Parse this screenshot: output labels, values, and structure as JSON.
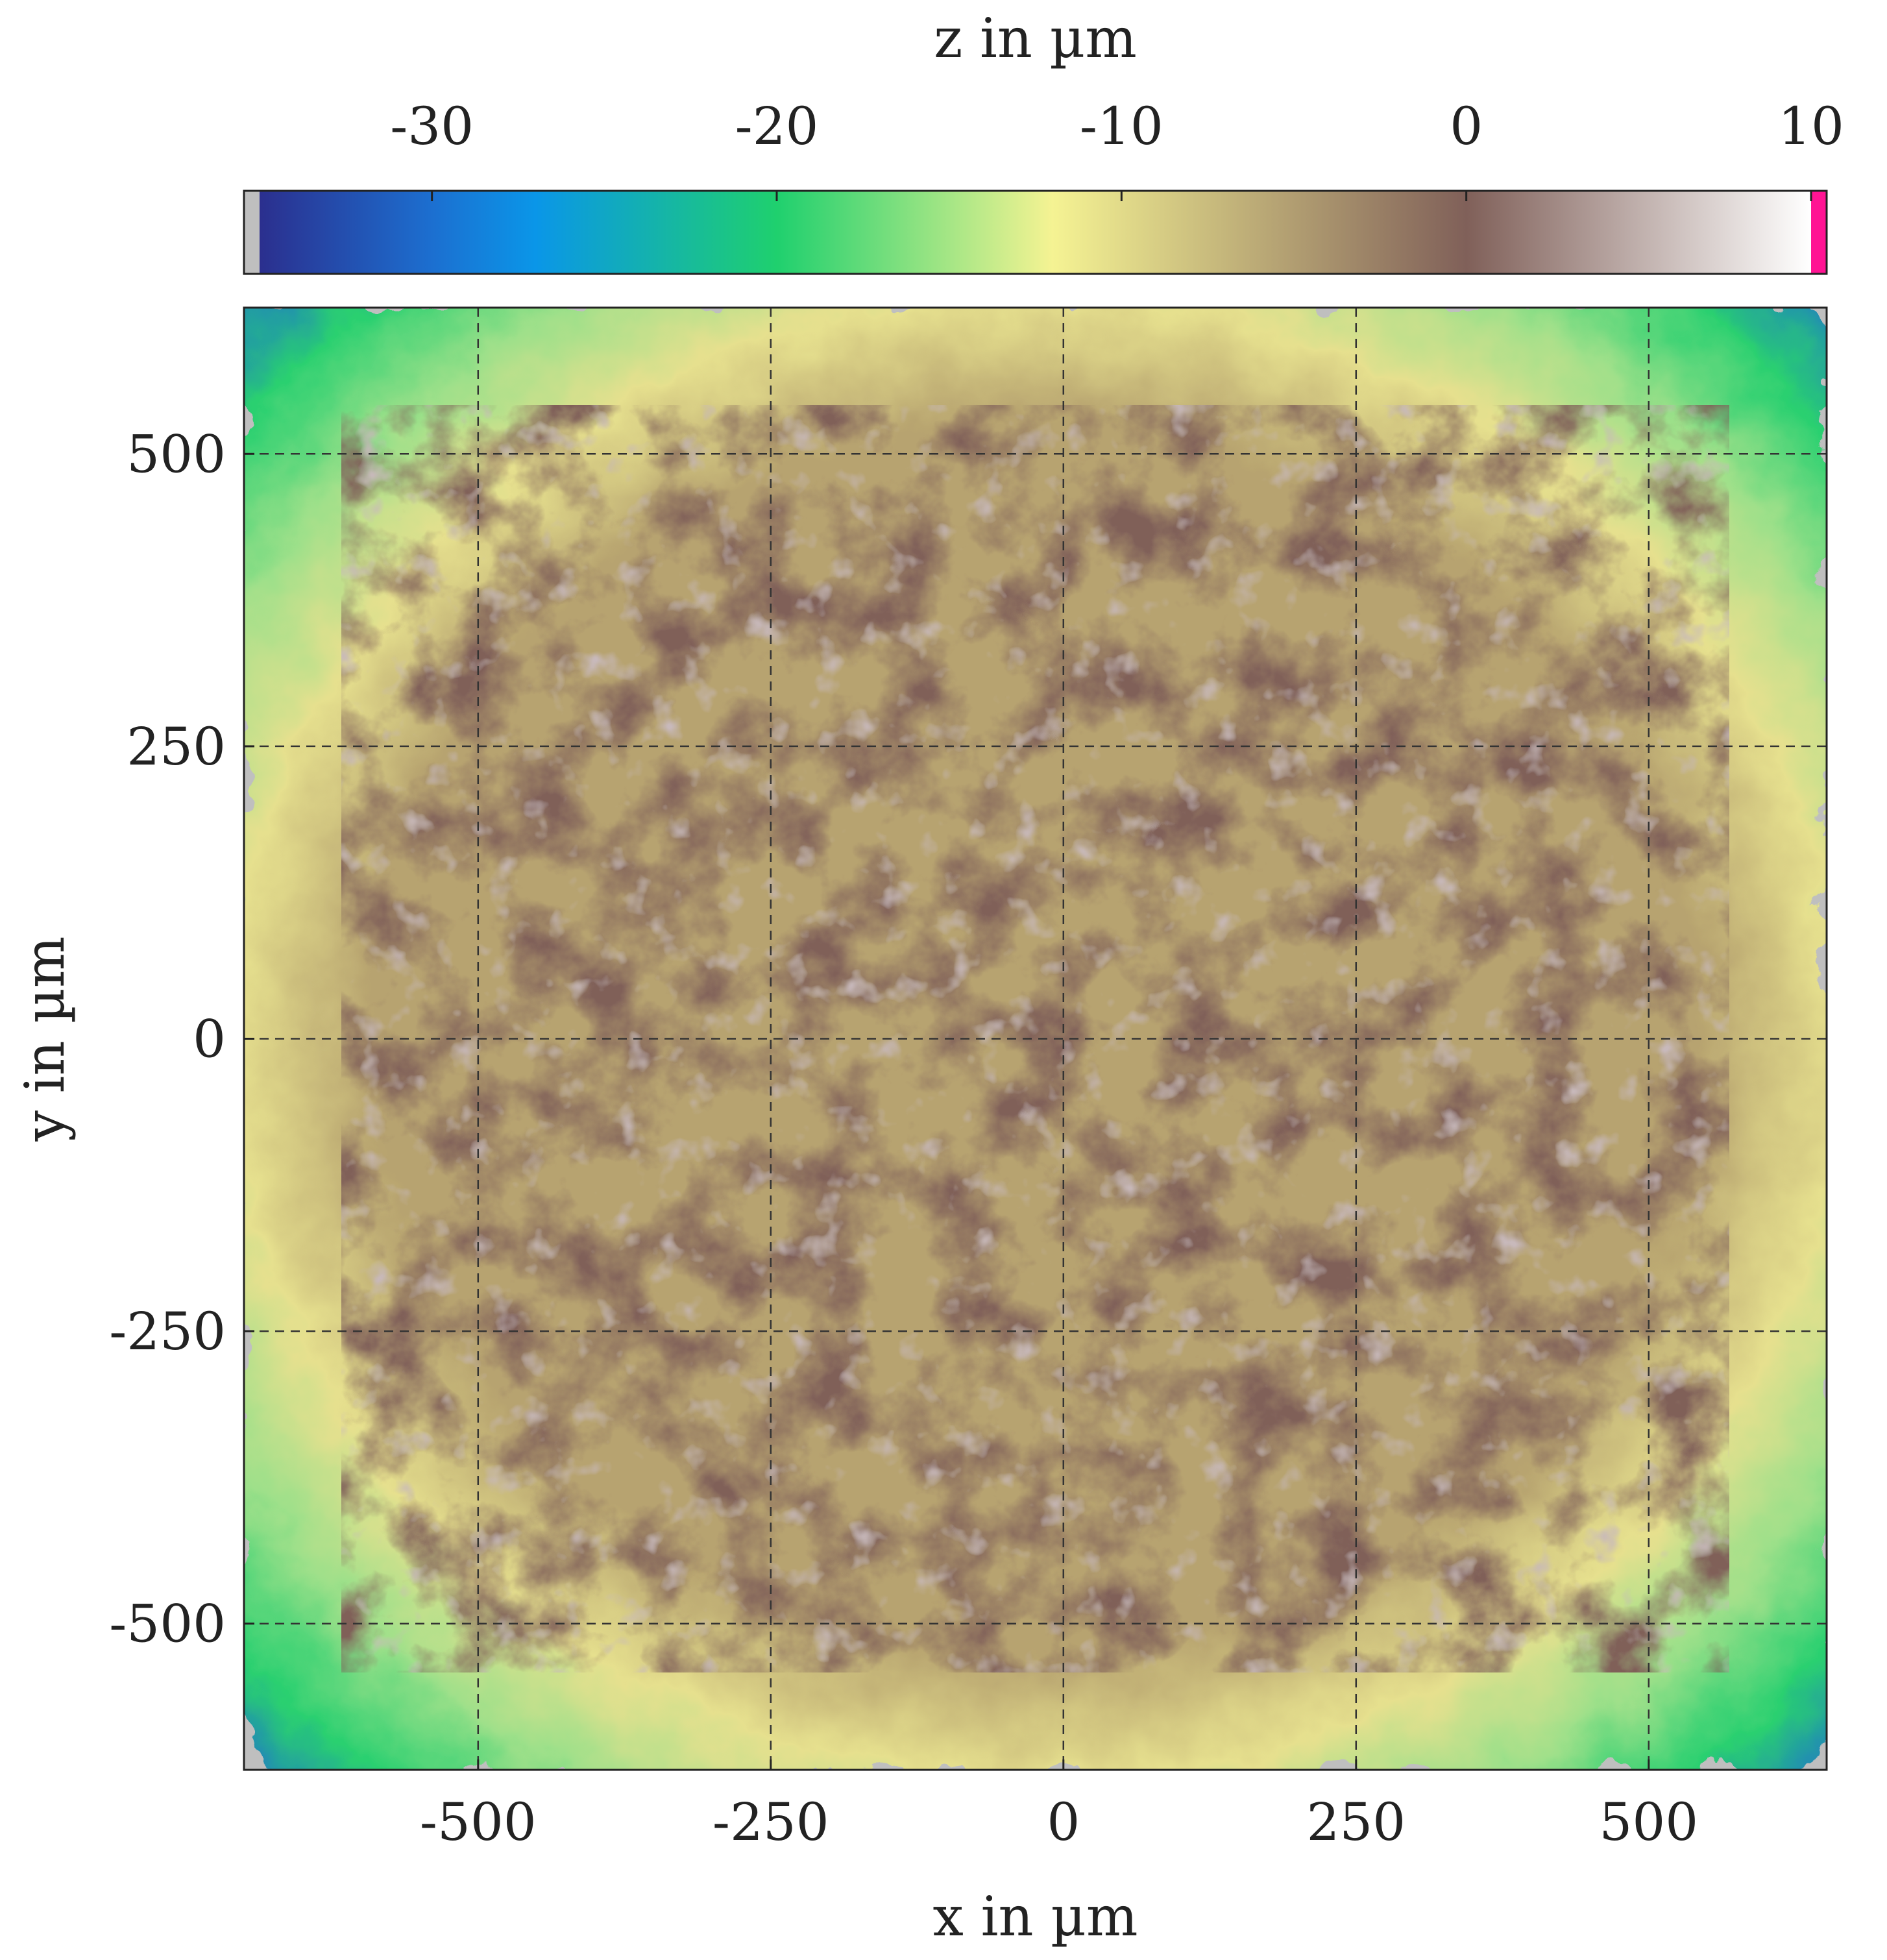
{
  "chart_data": {
    "type": "heatmap",
    "title": "",
    "xlabel": "x in µm",
    "ylabel": "y in µm",
    "xlim": [
      -700,
      652
    ],
    "ylim": [
      -625,
      625
    ],
    "xticks": [
      -500,
      -250,
      0,
      250,
      500
    ],
    "yticks": [
      -500,
      -250,
      0,
      250,
      500
    ],
    "xtick_labels": [
      "-500",
      "-250",
      "0",
      "250",
      "500"
    ],
    "ytick_labels": [
      "-500",
      "-250",
      "0",
      "250",
      "500"
    ],
    "grid": true,
    "colorbar": {
      "label": "z in µm",
      "position": "top",
      "range": [
        -35,
        10
      ],
      "ticks": [
        -30,
        -20,
        -10,
        0,
        10
      ],
      "tick_labels": [
        "-30",
        "-20",
        "-10",
        "0",
        "10"
      ],
      "colormap": [
        {
          "z": -35,
          "color": "#2b2f8e"
        },
        {
          "z": -30,
          "color": "#1c6fd0"
        },
        {
          "z": -27,
          "color": "#0a96e8"
        },
        {
          "z": -20,
          "color": "#1fd06e"
        },
        {
          "z": -12,
          "color": "#f5f393"
        },
        {
          "z": 0,
          "color": "#806059"
        },
        {
          "z": 10,
          "color": "#ffffff"
        }
      ],
      "under_color": "#bfbfbf",
      "over_color": "#ff1493"
    },
    "surface_description_values": {
      "central_plateau_z_range": [
        -10,
        2
      ],
      "edge_band_z_range": [
        -30,
        -12
      ],
      "missing_data_color": "#bfbfbf"
    }
  }
}
